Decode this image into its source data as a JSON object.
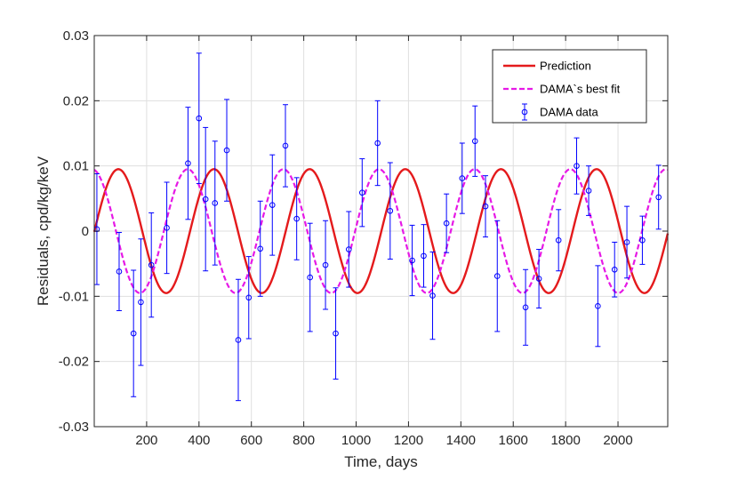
{
  "chart_data": {
    "type": "line",
    "title": "",
    "xlabel": "Time, days",
    "ylabel": "Residuals, cpd/kg/keV",
    "xlim": [
      0,
      2190
    ],
    "ylim": [
      -0.03,
      0.03
    ],
    "xticks": [
      200,
      400,
      600,
      800,
      1000,
      1200,
      1400,
      1600,
      1800,
      2000
    ],
    "yticks": [
      -0.03,
      -0.02,
      -0.01,
      0,
      0.01,
      0.02,
      0.03
    ],
    "grid": true,
    "legend_position": "top-right",
    "series": [
      {
        "name": "Prediction",
        "style": "solid",
        "color": "#e41a1c",
        "amplitude": 0.0095,
        "period": 365.25,
        "phase_day": 92
      },
      {
        "name": "DAMA`s best fit",
        "style": "dashed",
        "color": "#e619e6",
        "amplitude": 0.0095,
        "period": 365.25,
        "phase_day": 357
      },
      {
        "name": "DAMA data",
        "style": "errorbar",
        "color": "#0000ff",
        "points": [
          {
            "x": 10,
            "y": 0.0003,
            "err": 0.0085
          },
          {
            "x": 95,
            "y": -0.0062,
            "err": 0.006
          },
          {
            "x": 150,
            "y": -0.0157,
            "err": 0.0097
          },
          {
            "x": 178,
            "y": -0.0109,
            "err": 0.0097
          },
          {
            "x": 218,
            "y": -0.0052,
            "err": 0.008
          },
          {
            "x": 277,
            "y": 0.0005,
            "err": 0.007
          },
          {
            "x": 358,
            "y": 0.0104,
            "err": 0.0086
          },
          {
            "x": 400,
            "y": 0.0173,
            "err": 0.01
          },
          {
            "x": 425,
            "y": 0.0049,
            "err": 0.011
          },
          {
            "x": 461,
            "y": 0.0043,
            "err": 0.0095
          },
          {
            "x": 506,
            "y": 0.0124,
            "err": 0.0078
          },
          {
            "x": 550,
            "y": -0.0167,
            "err": 0.0093
          },
          {
            "x": 590,
            "y": -0.0102,
            "err": 0.0063
          },
          {
            "x": 634,
            "y": -0.0027,
            "err": 0.0073
          },
          {
            "x": 680,
            "y": 0.004,
            "err": 0.0077
          },
          {
            "x": 730,
            "y": 0.0131,
            "err": 0.0063
          },
          {
            "x": 773,
            "y": 0.0019,
            "err": 0.0063
          },
          {
            "x": 824,
            "y": -0.0071,
            "err": 0.0083
          },
          {
            "x": 883,
            "y": -0.0052,
            "err": 0.0068
          },
          {
            "x": 922,
            "y": -0.0157,
            "err": 0.007
          },
          {
            "x": 972,
            "y": -0.0028,
            "err": 0.0058
          },
          {
            "x": 1023,
            "y": 0.0059,
            "err": 0.0052
          },
          {
            "x": 1082,
            "y": 0.0135,
            "err": 0.0065
          },
          {
            "x": 1130,
            "y": 0.0031,
            "err": 0.0074
          },
          {
            "x": 1214,
            "y": -0.0045,
            "err": 0.0054
          },
          {
            "x": 1258,
            "y": -0.0038,
            "err": 0.0048
          },
          {
            "x": 1292,
            "y": -0.0099,
            "err": 0.0067
          },
          {
            "x": 1345,
            "y": 0.0012,
            "err": 0.0045
          },
          {
            "x": 1405,
            "y": 0.0081,
            "err": 0.0054
          },
          {
            "x": 1454,
            "y": 0.0138,
            "err": 0.0054
          },
          {
            "x": 1494,
            "y": 0.0038,
            "err": 0.0047
          },
          {
            "x": 1539,
            "y": -0.0069,
            "err": 0.0085
          },
          {
            "x": 1647,
            "y": -0.0117,
            "err": 0.0058
          },
          {
            "x": 1698,
            "y": -0.0073,
            "err": 0.0045
          },
          {
            "x": 1773,
            "y": -0.0014,
            "err": 0.0047
          },
          {
            "x": 1842,
            "y": 0.01,
            "err": 0.0043
          },
          {
            "x": 1888,
            "y": 0.0062,
            "err": 0.0038
          },
          {
            "x": 1923,
            "y": -0.0115,
            "err": 0.0062
          },
          {
            "x": 1987,
            "y": -0.0059,
            "err": 0.0042
          },
          {
            "x": 2034,
            "y": -0.0017,
            "err": 0.0055
          },
          {
            "x": 2093,
            "y": -0.0014,
            "err": 0.0037
          },
          {
            "x": 2155,
            "y": 0.0052,
            "err": 0.0049
          }
        ]
      }
    ]
  }
}
